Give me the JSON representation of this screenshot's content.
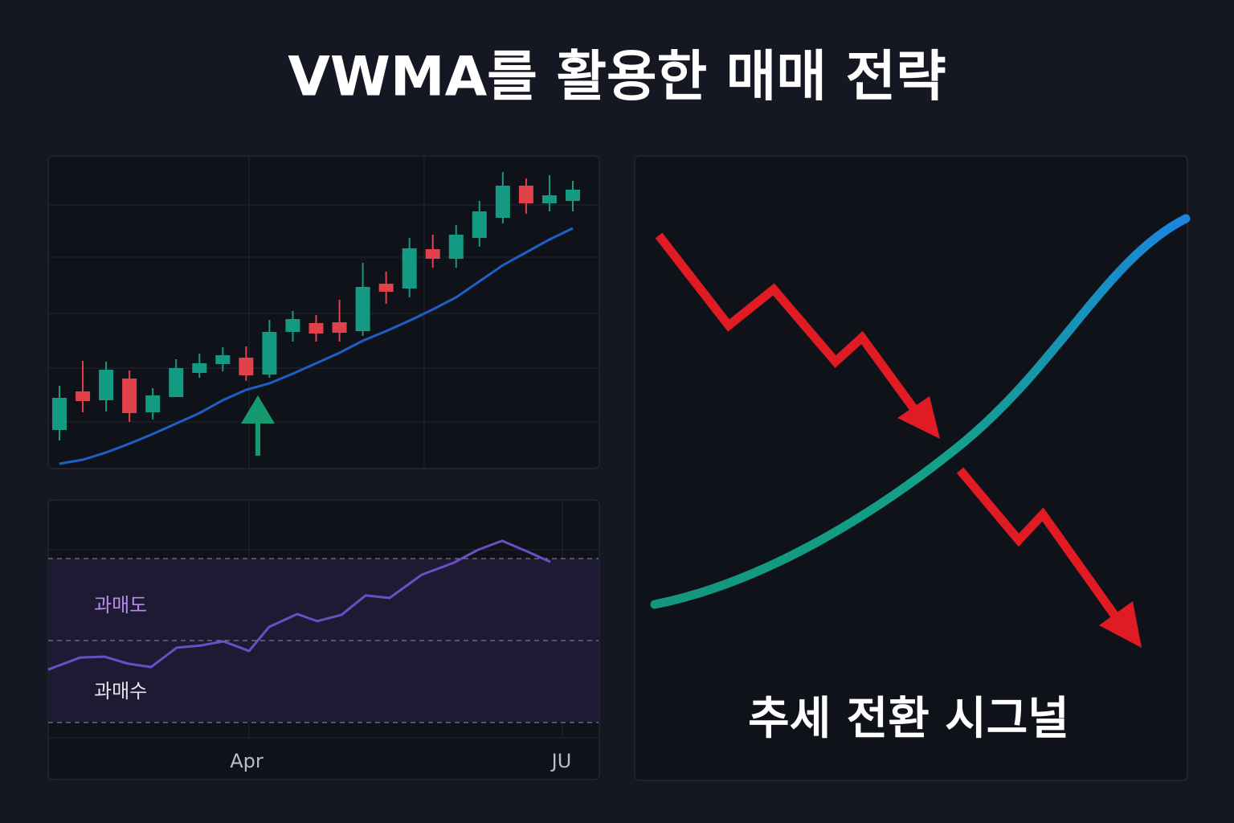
{
  "title": "VWMA를 활용한 매매 전략",
  "chart_data": [
    {
      "type": "candlestick",
      "open": [
        48,
        96,
        85,
        112,
        70,
        89,
        119,
        130,
        138,
        117,
        170,
        181,
        182,
        171,
        230,
        224,
        273,
        261,
        287,
        312,
        352,
        330,
        333
      ],
      "high": [
        103,
        134,
        133,
        122,
        100,
        136,
        143,
        151,
        152,
        185,
        196,
        191,
        210,
        256,
        245,
        287,
        291,
        303,
        333,
        369,
        361,
        365,
        358
      ],
      "low": [
        35,
        70,
        71,
        58,
        61,
        89,
        113,
        121,
        109,
        113,
        158,
        158,
        158,
        165,
        205,
        213,
        250,
        250,
        276,
        305,
        317,
        320,
        320
      ],
      "close": [
        88,
        84,
        123,
        69,
        91,
        125,
        131,
        141,
        116,
        170,
        186,
        168,
        169,
        226,
        220,
        274,
        261,
        291,
        320,
        352,
        330,
        340,
        347
      ],
      "up_color": "#149a82",
      "down_color": "#e0414b",
      "series": [
        {
          "color": "#1f5fc4",
          "values": [
            6,
            11,
            20,
            31,
            43,
            56,
            69,
            85,
            98,
            106,
            118,
            131,
            144,
            159,
            171,
            184,
            198,
            213,
            233,
            253,
            269,
            285,
            299
          ]
        }
      ],
      "ylim": [
        0,
        388
      ]
    },
    {
      "type": "line",
      "x": [
        0,
        40,
        70,
        100,
        128,
        160,
        190,
        218,
        250,
        275,
        310,
        335,
        365,
        395,
        425,
        465,
        505,
        535,
        565,
        600,
        625
      ],
      "series": [
        {
          "color": "#6a4fc4",
          "values": [
            39.4,
            43.8,
            44.1,
            41.5,
            40.3,
            47.4,
            48.2,
            49.7,
            46.2,
            55.0,
            59.7,
            57.1,
            59.4,
            66.5,
            65.6,
            74.1,
            78.5,
            83.2,
            86.5,
            82.1,
            78.8
          ]
        }
      ],
      "xlim": [
        0,
        685
      ],
      "xticks": [
        {
          "value": 247,
          "label": "Apr"
        },
        {
          "value": 639,
          "label": "JU"
        }
      ],
      "ylim": [
        0,
        100
      ],
      "levels": [
        20,
        50,
        80
      ],
      "annotations": [
        "과매도",
        "과매수"
      ]
    }
  ],
  "diagram": {
    "caption": "추세 전환 시그널"
  }
}
